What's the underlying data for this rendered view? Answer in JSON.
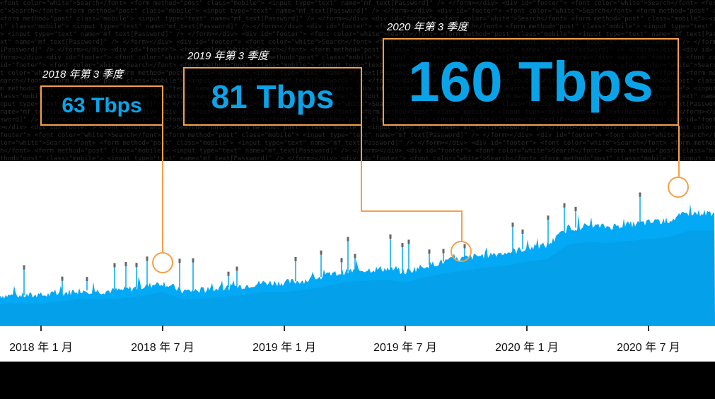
{
  "chart_data": {
    "type": "area",
    "title": "",
    "xlabel": "",
    "ylabel": "",
    "x_ticks": [
      "2018 年 1 月",
      "2018 年 7 月",
      "2019 年 1 月",
      "2019 年 7 月",
      "2020 年 1 月",
      "2020 年 7 月"
    ],
    "y_unit": "Tbps",
    "grid": false,
    "colors": {
      "area": "#03a9f4",
      "area_dark": "#0a8fd6",
      "spike": "#666666",
      "callout": "#f4a04a",
      "value_text": "#0aa3e8"
    },
    "series": [
      {
        "values": [
          [
            "2018-01",
            28
          ],
          [
            "2018-02",
            30
          ],
          [
            "2018-03",
            33
          ],
          [
            "2018-04",
            32
          ],
          [
            "2018-05",
            33
          ],
          [
            "2018-06",
            36
          ],
          [
            "2018-07",
            40
          ],
          [
            "2018-08",
            32
          ],
          [
            "2018-09",
            33
          ],
          [
            "2018-10",
            35
          ],
          [
            "2018-11",
            37
          ],
          [
            "2018-12",
            40
          ],
          [
            "2019-01",
            40
          ],
          [
            "2019-02",
            42
          ],
          [
            "2019-03",
            46
          ],
          [
            "2019-04",
            50
          ],
          [
            "2019-05",
            52
          ],
          [
            "2019-06",
            53
          ],
          [
            "2019-07",
            50
          ],
          [
            "2019-08",
            56
          ],
          [
            "2019-09",
            60
          ],
          [
            "2019-10",
            63
          ],
          [
            "2019-11",
            66
          ],
          [
            "2019-12",
            68
          ],
          [
            "2020-01",
            72
          ],
          [
            "2020-02",
            75
          ],
          [
            "2020-03",
            90
          ],
          [
            "2020-04",
            93
          ],
          [
            "2020-05",
            92
          ],
          [
            "2020-06",
            94
          ],
          [
            "2020-07",
            96
          ],
          [
            "2020-08",
            98
          ],
          [
            "2020-09",
            105
          ]
        ]
      }
    ],
    "annotations": [
      {
        "label": "2018 年第 3 季度",
        "value": "63 Tbps",
        "x": "2018-07"
      },
      {
        "label": "2019 年第 3 季度",
        "value": "81 Tbps",
        "x": "2019-09"
      },
      {
        "label": "2020 年第 3 季度",
        "value": "160 Tbps",
        "x": "2020-09"
      }
    ]
  }
}
